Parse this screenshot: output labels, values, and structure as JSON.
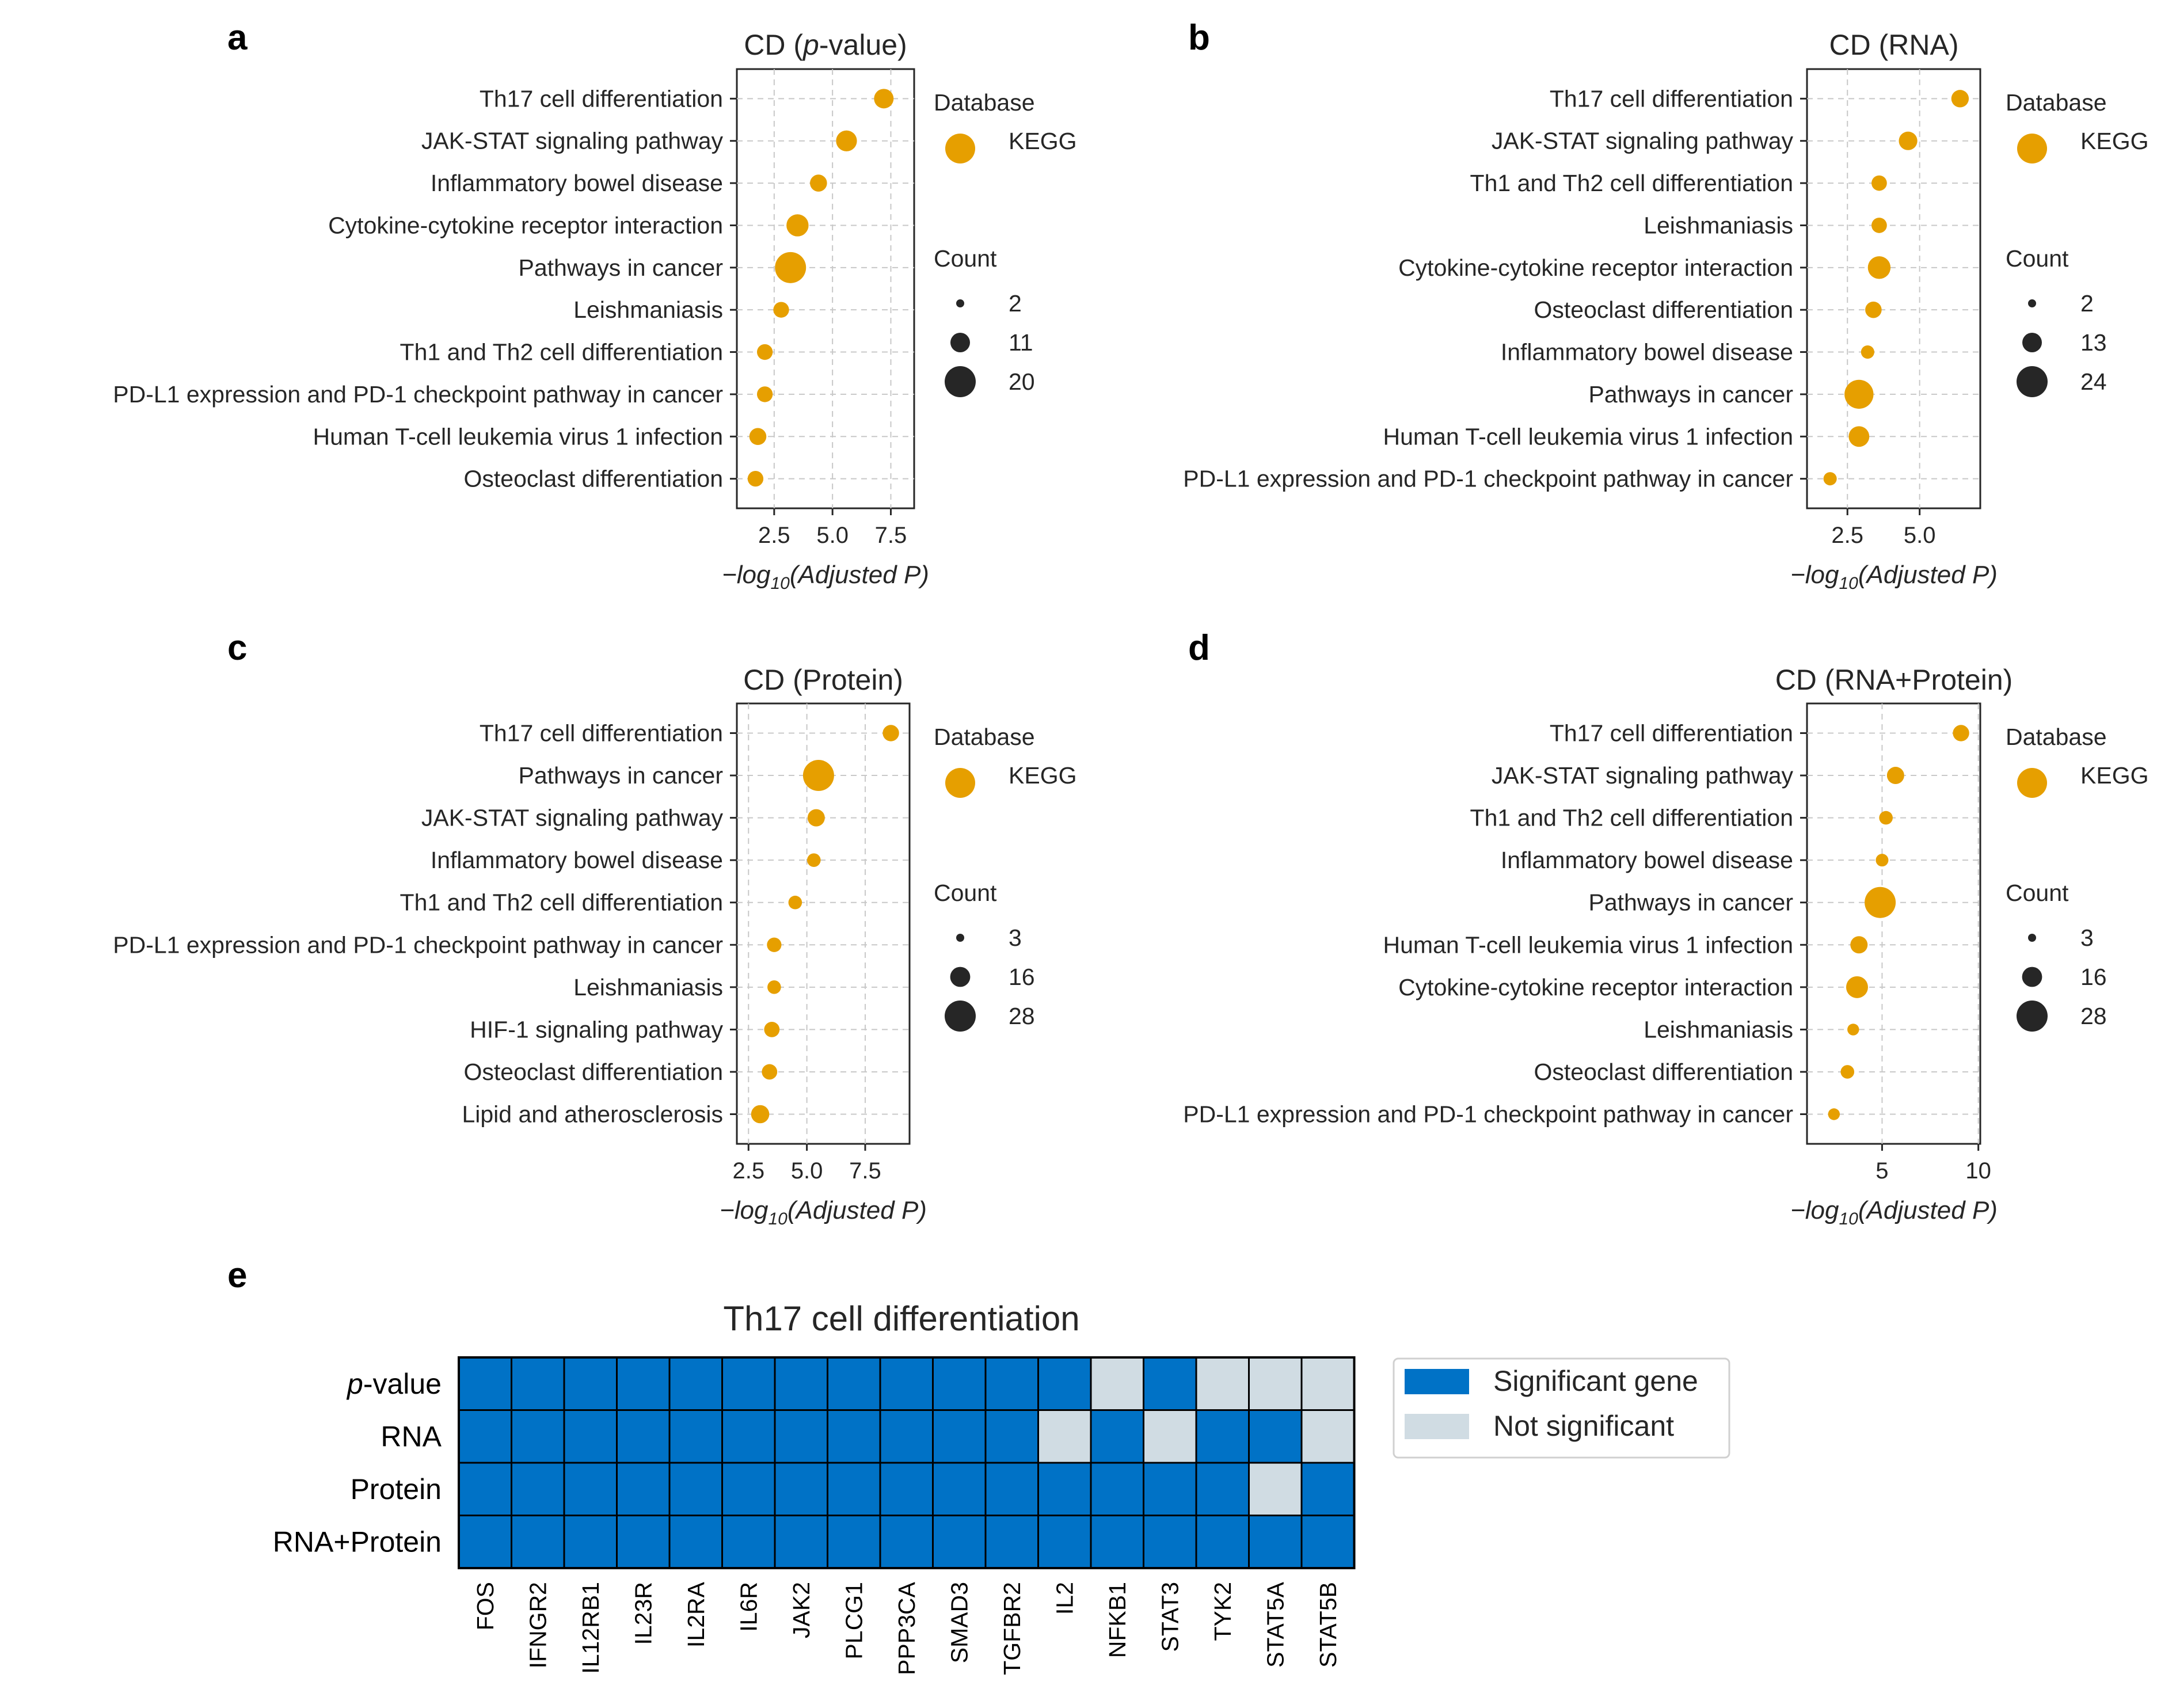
{
  "colors": {
    "dot": "#E69F00",
    "count_dot": "#262626",
    "significant": "#0072C6",
    "not_significant": "#D0DCE3"
  },
  "chart_data": [
    {
      "type": "scatter",
      "panel": "a",
      "title": "CD (p-value)",
      "title_parts": {
        "prefix": "CD (",
        "italic": "p",
        "suffix": "-value)"
      },
      "xlabel": "−log10(Adjusted P)",
      "xlabel_parts": {
        "prefix": "−log",
        "sub": "10",
        "rest": "(Adjusted P)"
      },
      "xlim": [
        0.9,
        8.5
      ],
      "xticks": [
        2.5,
        5.0,
        7.5
      ],
      "xtick_labels": [
        "2.5",
        "5.0",
        "7.5"
      ],
      "grid": true,
      "categories": [
        "Th17 cell differentiation",
        "JAK-STAT signaling pathway",
        "Inflammatory bowel disease",
        "Cytokine-cytokine receptor interaction",
        "Pathways in cancer",
        "Leishmaniasis",
        "Th1 and Th2 cell differentiation",
        "PD-L1 expression and PD-1 checkpoint pathway in cancer",
        "Human T-cell leukemia virus 1 infection",
        "Osteoclast differentiation"
      ],
      "x": [
        7.2,
        5.6,
        4.4,
        3.5,
        3.2,
        2.8,
        2.1,
        2.1,
        1.8,
        1.7
      ],
      "count": [
        11,
        12,
        9,
        13,
        20,
        8,
        8,
        8,
        9,
        8
      ],
      "legend_database_title": "Database",
      "legend_database_label": "KEGG",
      "legend_count_title": "Count",
      "legend_count_values": [
        2,
        11,
        20
      ],
      "legend_count_labels": [
        "2",
        "11",
        "20"
      ],
      "count_min": 2,
      "count_max": 20
    },
    {
      "type": "scatter",
      "panel": "b",
      "title": "CD (RNA)",
      "xlabel": "−log10(Adjusted P)",
      "xlabel_parts": {
        "prefix": "−log",
        "sub": "10",
        "rest": "(Adjusted P)"
      },
      "xlim": [
        1.1,
        7.1
      ],
      "xticks": [
        2.5,
        5.0
      ],
      "xtick_labels": [
        "2.5",
        "5.0"
      ],
      "grid": true,
      "categories": [
        "Th17 cell differentiation",
        "JAK-STAT signaling pathway",
        "Th1 and Th2 cell differentiation",
        "Leishmaniasis",
        "Cytokine-cytokine receptor interaction",
        "Osteoclast differentiation",
        "Inflammatory bowel disease",
        "Pathways in cancer",
        "Human T-cell leukemia virus 1 infection",
        "PD-L1 expression and PD-1 checkpoint pathway in cancer"
      ],
      "x": [
        6.4,
        4.6,
        3.6,
        3.6,
        3.6,
        3.4,
        3.2,
        2.9,
        2.9,
        1.9
      ],
      "count": [
        11,
        12,
        9,
        9,
        16,
        10,
        7,
        22,
        14,
        7
      ],
      "legend_database_title": "Database",
      "legend_database_label": "KEGG",
      "legend_count_title": "Count",
      "legend_count_values": [
        2,
        13,
        24
      ],
      "legend_count_labels": [
        "2",
        "13",
        "24"
      ],
      "count_min": 2,
      "count_max": 24
    },
    {
      "type": "scatter",
      "panel": "c",
      "title": "CD (Protein)",
      "xlabel": "−log10(Adjusted P)",
      "xlabel_parts": {
        "prefix": "−log",
        "sub": "10",
        "rest": "(Adjusted P)"
      },
      "xlim": [
        2.0,
        9.4
      ],
      "xticks": [
        2.5,
        5.0,
        7.5
      ],
      "xtick_labels": [
        "2.5",
        "5.0",
        "7.5"
      ],
      "grid": true,
      "categories": [
        "Th17 cell differentiation",
        "Pathways in cancer",
        "JAK-STAT signaling pathway",
        "Inflammatory bowel disease",
        "Th1 and Th2 cell differentiation",
        "PD-L1 expression and PD-1 checkpoint pathway in cancer",
        "Leishmaniasis",
        "HIF-1 signaling pathway",
        "Osteoclast differentiation",
        "Lipid and atherosclerosis"
      ],
      "x": [
        8.6,
        5.5,
        5.4,
        5.3,
        4.5,
        3.6,
        3.6,
        3.5,
        3.4,
        3.0
      ],
      "count": [
        12,
        28,
        13,
        9,
        9,
        10,
        9,
        11,
        11,
        14
      ],
      "legend_database_title": "Database",
      "legend_database_label": "KEGG",
      "legend_count_title": "Count",
      "legend_count_values": [
        3,
        16,
        28
      ],
      "legend_count_labels": [
        "3",
        "16",
        "28"
      ],
      "count_min": 3,
      "count_max": 28
    },
    {
      "type": "scatter",
      "panel": "d",
      "title": "CD (RNA+Protein)",
      "xlabel": "−log10(Adjusted P)",
      "xlabel_parts": {
        "prefix": "−log",
        "sub": "10",
        "rest": "(Adjusted P)"
      },
      "xlim": [
        1.1,
        10.1
      ],
      "xticks": [
        5,
        10
      ],
      "xtick_labels": [
        "5",
        "10"
      ],
      "grid": true,
      "categories": [
        "Th17 cell differentiation",
        "JAK-STAT signaling pathway",
        "Th1 and Th2 cell differentiation",
        "Inflammatory bowel disease",
        "Pathways in cancer",
        "Human T-cell leukemia virus 1 infection",
        "Cytokine-cytokine receptor interaction",
        "Leishmaniasis",
        "Osteoclast differentiation",
        "PD-L1 expression and PD-1 checkpoint pathway in cancer"
      ],
      "x": [
        9.1,
        5.7,
        5.2,
        5.0,
        4.9,
        3.8,
        3.7,
        3.5,
        3.2,
        2.5
      ],
      "count": [
        12,
        13,
        9,
        8,
        28,
        13,
        18,
        7,
        9,
        7
      ],
      "legend_database_title": "Database",
      "legend_database_label": "KEGG",
      "legend_count_title": "Count",
      "legend_count_values": [
        3,
        16,
        28
      ],
      "legend_count_labels": [
        "3",
        "16",
        "28"
      ],
      "count_min": 3,
      "count_max": 28
    },
    {
      "type": "heatmap",
      "panel": "e",
      "title": "Th17 cell differentiation",
      "rows": [
        "p-value",
        "RNA",
        "Protein",
        "RNA+Protein"
      ],
      "row_label_parts_first": {
        "italic": "p",
        "rest": "-value"
      },
      "columns": [
        "FOS",
        "IFNGR2",
        "IL12RB1",
        "IL23R",
        "IL2RA",
        "IL6R",
        "JAK2",
        "PLCG1",
        "PPP3CA",
        "SMAD3",
        "TGFBR2",
        "IL2",
        "NFKB1",
        "STAT3",
        "TYK2",
        "STAT5A",
        "STAT5B"
      ],
      "values": [
        [
          1,
          1,
          1,
          1,
          1,
          1,
          1,
          1,
          1,
          1,
          1,
          1,
          0,
          1,
          0,
          0,
          0
        ],
        [
          1,
          1,
          1,
          1,
          1,
          1,
          1,
          1,
          1,
          1,
          1,
          0,
          1,
          0,
          1,
          1,
          0
        ],
        [
          1,
          1,
          1,
          1,
          1,
          1,
          1,
          1,
          1,
          1,
          1,
          1,
          1,
          1,
          1,
          0,
          1
        ],
        [
          1,
          1,
          1,
          1,
          1,
          1,
          1,
          1,
          1,
          1,
          1,
          1,
          1,
          1,
          1,
          1,
          1
        ]
      ],
      "legend": [
        "Significant gene",
        "Not significant"
      ]
    }
  ]
}
